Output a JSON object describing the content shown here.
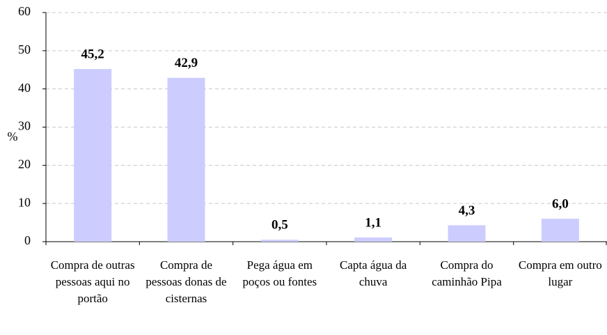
{
  "chart_data": {
    "type": "bar",
    "y_label": "%",
    "categories": [
      "Compra de outras pessoas aqui no portão",
      "Compra de pessoas donas de cisternas",
      "Pega água em poços ou fontes",
      "Capta água da chuva",
      "Compra do caminhão Pipa",
      "Compra em outro lugar"
    ],
    "values": [
      45.2,
      42.9,
      0.5,
      1.1,
      4.3,
      6.0
    ],
    "value_labels": [
      "45,2",
      "42,9",
      "0,5",
      "1,1",
      "4,3",
      "6,0"
    ],
    "color": "#ccccff",
    "ylim": [
      0,
      60
    ],
    "yticks": [
      0,
      10,
      20,
      30,
      40,
      50,
      60
    ],
    "grid": true
  }
}
